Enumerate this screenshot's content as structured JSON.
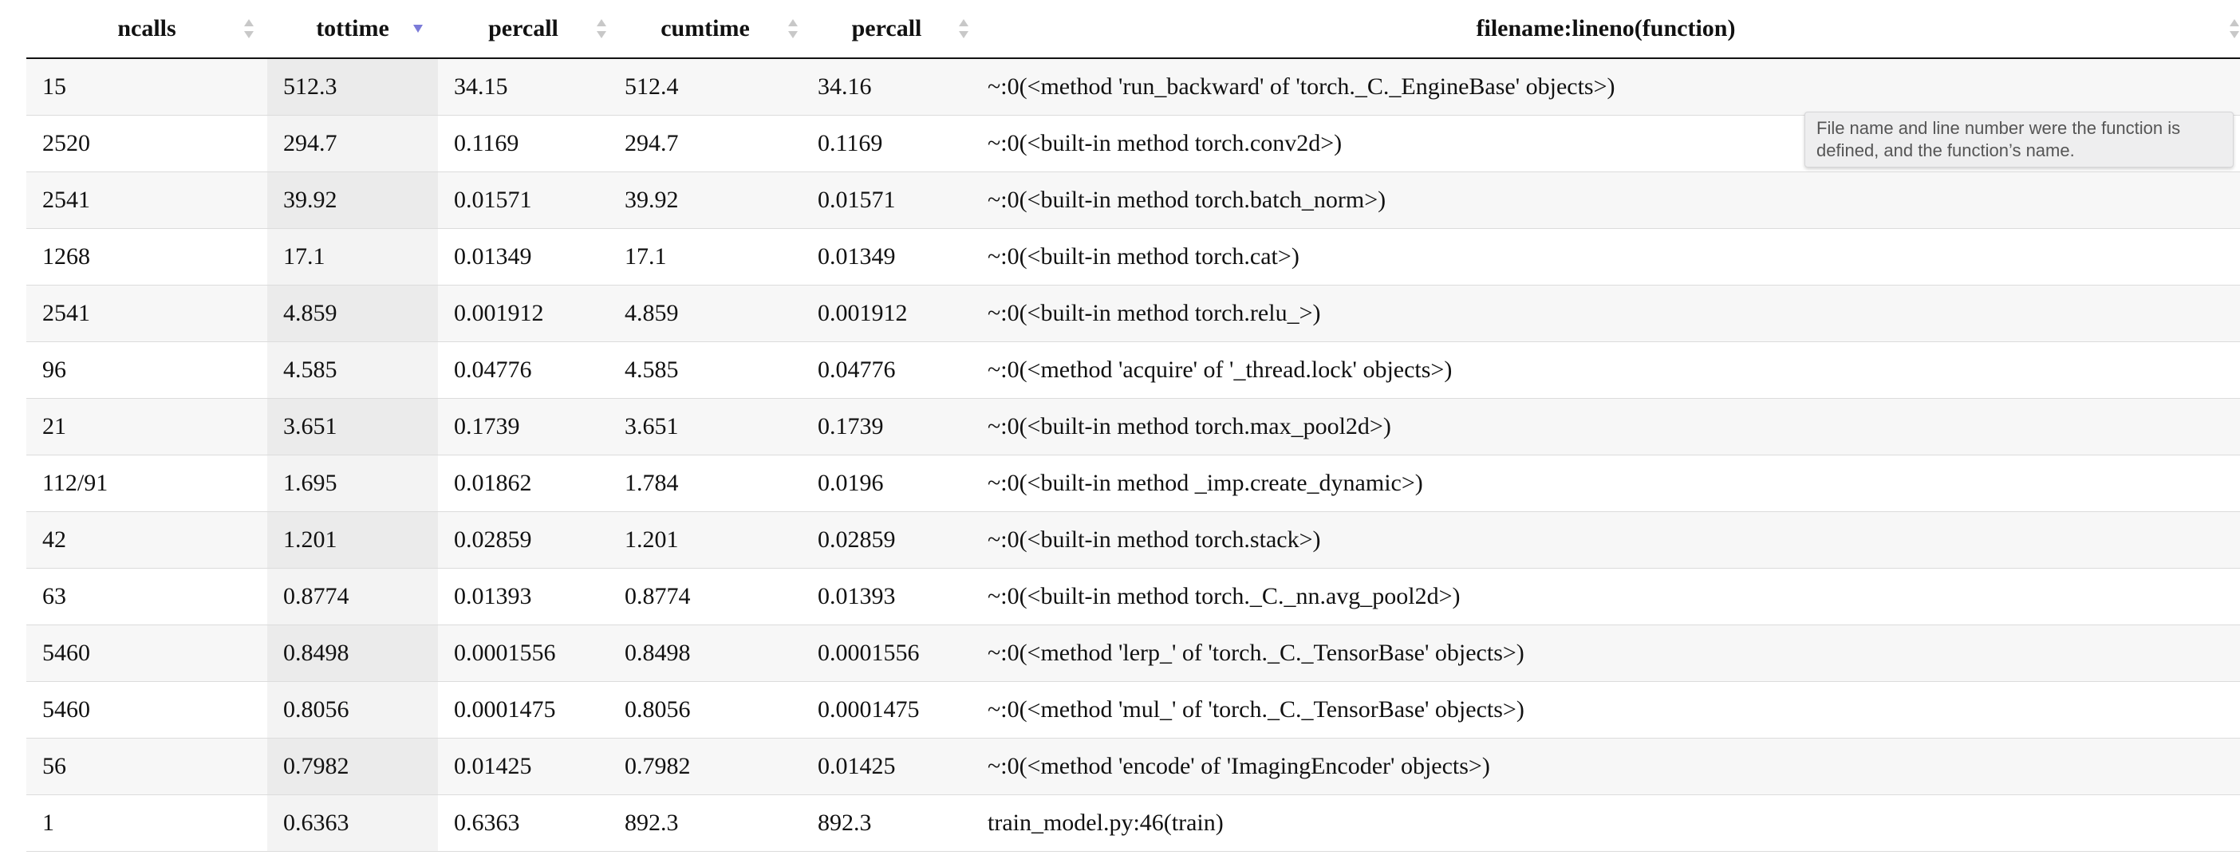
{
  "table": {
    "sorted_column": "tottime",
    "sort_direction": "descending",
    "columns": [
      {
        "key": "ncalls",
        "label": "ncalls"
      },
      {
        "key": "tottime",
        "label": "tottime"
      },
      {
        "key": "percall1",
        "label": "percall"
      },
      {
        "key": "cumtime",
        "label": "cumtime"
      },
      {
        "key": "percall2",
        "label": "percall"
      },
      {
        "key": "filename",
        "label": "filename:lineno(function)"
      }
    ],
    "rows": [
      {
        "ncalls": "15",
        "tottime": "512.3",
        "percall1": "34.15",
        "cumtime": "512.4",
        "percall2": "34.16",
        "filename": "~:0(<method 'run_backward' of 'torch._C._EngineBase' objects>)"
      },
      {
        "ncalls": "2520",
        "tottime": "294.7",
        "percall1": "0.1169",
        "cumtime": "294.7",
        "percall2": "0.1169",
        "filename": "~:0(<built-in method torch.conv2d>)"
      },
      {
        "ncalls": "2541",
        "tottime": "39.92",
        "percall1": "0.01571",
        "cumtime": "39.92",
        "percall2": "0.01571",
        "filename": "~:0(<built-in method torch.batch_norm>)"
      },
      {
        "ncalls": "1268",
        "tottime": "17.1",
        "percall1": "0.01349",
        "cumtime": "17.1",
        "percall2": "0.01349",
        "filename": "~:0(<built-in method torch.cat>)"
      },
      {
        "ncalls": "2541",
        "tottime": "4.859",
        "percall1": "0.001912",
        "cumtime": "4.859",
        "percall2": "0.001912",
        "filename": "~:0(<built-in method torch.relu_>)"
      },
      {
        "ncalls": "96",
        "tottime": "4.585",
        "percall1": "0.04776",
        "cumtime": "4.585",
        "percall2": "0.04776",
        "filename": "~:0(<method 'acquire' of '_thread.lock' objects>)"
      },
      {
        "ncalls": "21",
        "tottime": "3.651",
        "percall1": "0.1739",
        "cumtime": "3.651",
        "percall2": "0.1739",
        "filename": "~:0(<built-in method torch.max_pool2d>)"
      },
      {
        "ncalls": "112/91",
        "tottime": "1.695",
        "percall1": "0.01862",
        "cumtime": "1.784",
        "percall2": "0.0196",
        "filename": "~:0(<built-in method _imp.create_dynamic>)"
      },
      {
        "ncalls": "42",
        "tottime": "1.201",
        "percall1": "0.02859",
        "cumtime": "1.201",
        "percall2": "0.02859",
        "filename": "~:0(<built-in method torch.stack>)"
      },
      {
        "ncalls": "63",
        "tottime": "0.8774",
        "percall1": "0.01393",
        "cumtime": "0.8774",
        "percall2": "0.01393",
        "filename": "~:0(<built-in method torch._C._nn.avg_pool2d>)"
      },
      {
        "ncalls": "5460",
        "tottime": "0.8498",
        "percall1": "0.0001556",
        "cumtime": "0.8498",
        "percall2": "0.0001556",
        "filename": "~:0(<method 'lerp_' of 'torch._C._TensorBase' objects>)"
      },
      {
        "ncalls": "5460",
        "tottime": "0.8056",
        "percall1": "0.0001475",
        "cumtime": "0.8056",
        "percall2": "0.0001475",
        "filename": "~:0(<method 'mul_' of 'torch._C._TensorBase' objects>)"
      },
      {
        "ncalls": "56",
        "tottime": "0.7982",
        "percall1": "0.01425",
        "cumtime": "0.7982",
        "percall2": "0.01425",
        "filename": "~:0(<method 'encode' of 'ImagingEncoder' objects>)"
      },
      {
        "ncalls": "1",
        "tottime": "0.6363",
        "percall1": "0.6363",
        "cumtime": "892.3",
        "percall2": "892.3",
        "filename": "train_model.py:46(train)"
      }
    ]
  },
  "tooltip": {
    "text": "File name and line number were the function is defined, and the function’s name."
  },
  "icons": {
    "sort_inactive": "sort-updown-icon",
    "sort_active": "sort-descending-icon"
  },
  "colors": {
    "active_sort": "#7b7bd8",
    "inactive_sort": "#c8c8c8",
    "header_rule": "#111111"
  }
}
